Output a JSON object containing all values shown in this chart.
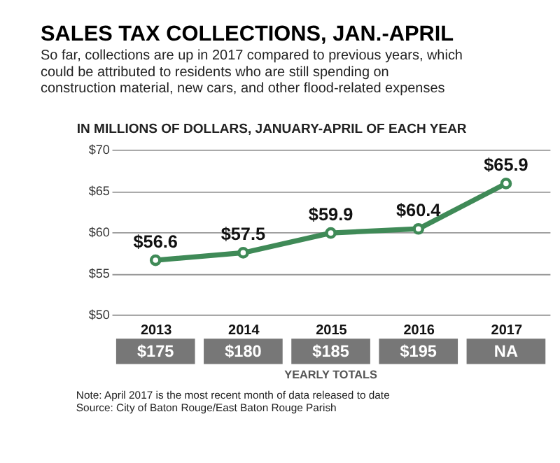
{
  "chart_data": {
    "type": "line",
    "title": "SALES TAX COLLECTIONS, JAN.-APRIL",
    "subtitle": "So far, collections are up in 2017 compared to previous years, which could be attributed to residents who are still spending on construction material, new cars, and other flood-related expenses",
    "ylabel": "IN MILLIONS OF DOLLARS, JANUARY-APRIL OF EACH YEAR",
    "categories": [
      "2013",
      "2014",
      "2015",
      "2016",
      "2017"
    ],
    "series": [
      {
        "color": "#3f8a57",
        "values": [
          56.6,
          57.5,
          59.9,
          60.4,
          65.9
        ],
        "value_labels": [
          "$56.6",
          "$57.5",
          "$59.9",
          "$60.4",
          "$65.9"
        ]
      }
    ],
    "ylim": [
      50,
      70
    ],
    "yticks": [
      {
        "value": 50,
        "label": "$50"
      },
      {
        "value": 55,
        "label": "$55"
      },
      {
        "value": 60,
        "label": "$60"
      },
      {
        "value": 65,
        "label": "$65"
      },
      {
        "value": 70,
        "label": "$70"
      }
    ],
    "grid": "y",
    "marker": "circle",
    "line_style": "solid",
    "annotations": [
      "$175",
      "$180",
      "$185",
      "$195",
      "NA",
      "YEARLY TOTALS",
      "Note: April 2017 is the most recent month of data released to date",
      "Source: City of Baton Rouge/East Baton Rouge Parish"
    ]
  }
}
